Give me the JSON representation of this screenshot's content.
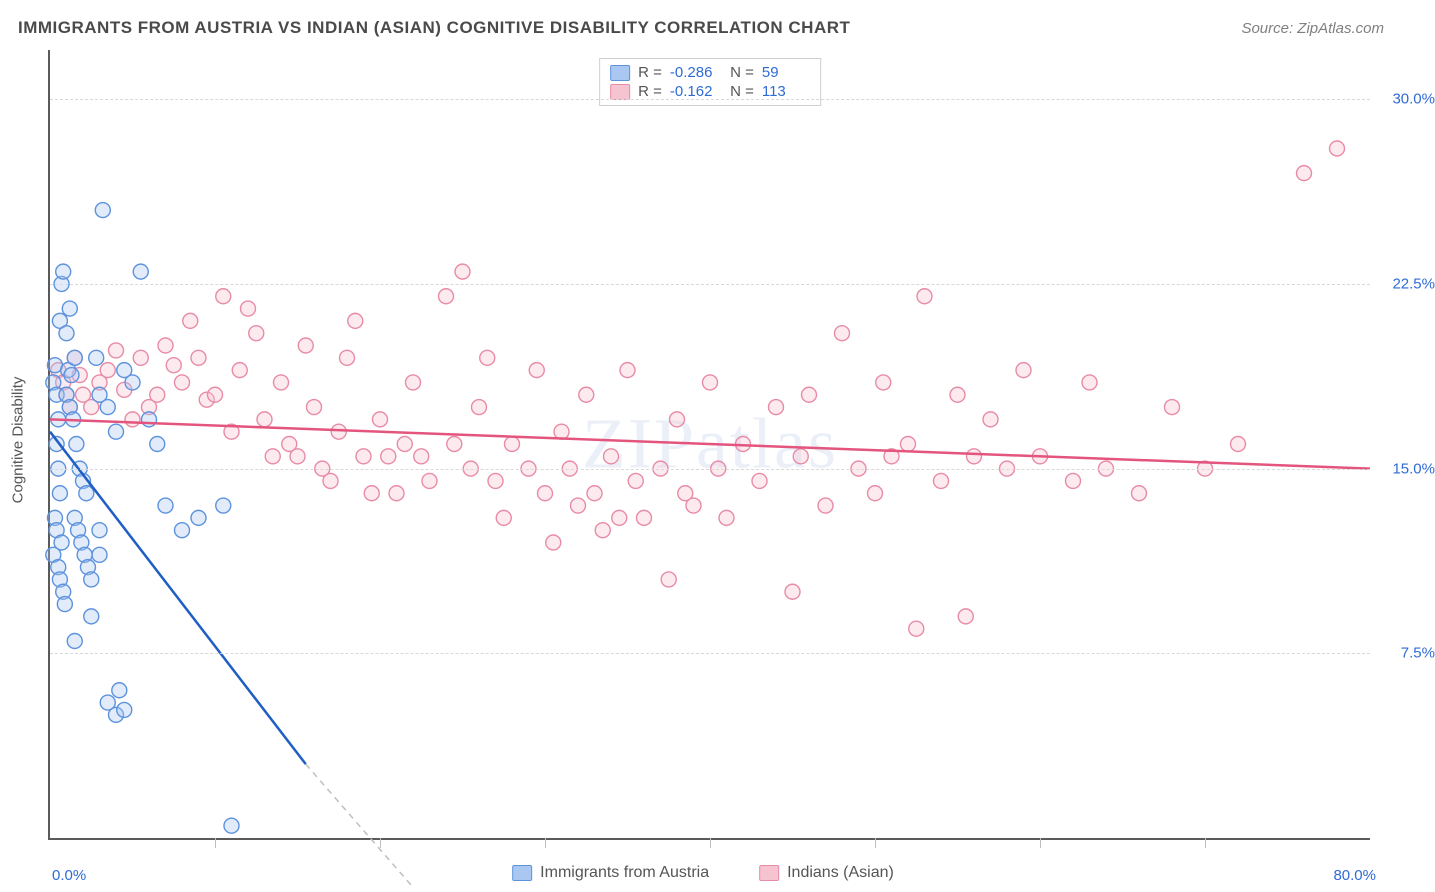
{
  "title": "IMMIGRANTS FROM AUSTRIA VS INDIAN (ASIAN) COGNITIVE DISABILITY CORRELATION CHART",
  "source": "Source: ZipAtlas.com",
  "watermark": "ZIPatlas",
  "ylabel": "Cognitive Disability",
  "chart": {
    "type": "scatter",
    "background_color": "#ffffff",
    "grid_color": "#d8d8d8",
    "axis_color": "#5a5a5a",
    "xlim": [
      0,
      80
    ],
    "ylim": [
      0,
      32
    ],
    "x_origin_label": "0.0%",
    "x_max_label": "80.0%",
    "yticks": [
      7.5,
      15.0,
      22.5,
      30.0
    ],
    "ytick_labels": [
      "7.5%",
      "15.0%",
      "22.5%",
      "30.0%"
    ],
    "xtick_positions": [
      10,
      20,
      30,
      40,
      50,
      60,
      70
    ],
    "marker_radius": 7.5,
    "marker_fill_opacity": 0.35,
    "marker_stroke_width": 1.4,
    "series": [
      {
        "name": "Immigrants from Austria",
        "color_fill": "#a9c7f0",
        "color_stroke": "#5d93dd",
        "trend_color": "#1f5fc4",
        "R": "-0.286",
        "N": "59",
        "trend": {
          "x1": 0,
          "y1": 16.5,
          "x2": 15.5,
          "y2": 3.0,
          "x2_ext": 22,
          "y2_ext": -2
        },
        "points": [
          [
            0.2,
            18.5
          ],
          [
            0.3,
            19.2
          ],
          [
            0.5,
            17.0
          ],
          [
            0.6,
            21.0
          ],
          [
            0.7,
            22.5
          ],
          [
            0.8,
            23.0
          ],
          [
            0.4,
            16.0
          ],
          [
            0.5,
            15.0
          ],
          [
            0.6,
            14.0
          ],
          [
            0.3,
            13.0
          ],
          [
            0.4,
            12.5
          ],
          [
            0.7,
            12.0
          ],
          [
            0.2,
            11.5
          ],
          [
            0.5,
            11.0
          ],
          [
            0.6,
            10.5
          ],
          [
            0.8,
            10.0
          ],
          [
            0.9,
            9.5
          ],
          [
            0.4,
            18.0
          ],
          [
            1.0,
            18.0
          ],
          [
            1.1,
            19.0
          ],
          [
            1.3,
            18.8
          ],
          [
            1.5,
            19.5
          ],
          [
            1.2,
            17.5
          ],
          [
            1.4,
            17.0
          ],
          [
            1.6,
            16.0
          ],
          [
            1.8,
            15.0
          ],
          [
            2.0,
            14.5
          ],
          [
            2.2,
            14.0
          ],
          [
            1.5,
            13.0
          ],
          [
            1.7,
            12.5
          ],
          [
            1.9,
            12.0
          ],
          [
            2.1,
            11.5
          ],
          [
            2.3,
            11.0
          ],
          [
            2.5,
            10.5
          ],
          [
            1.0,
            20.5
          ],
          [
            1.2,
            21.5
          ],
          [
            3.2,
            25.5
          ],
          [
            3.0,
            18.0
          ],
          [
            3.5,
            17.5
          ],
          [
            4.0,
            16.5
          ],
          [
            4.5,
            19.0
          ],
          [
            5.0,
            18.5
          ],
          [
            5.5,
            23.0
          ],
          [
            6.0,
            17.0
          ],
          [
            6.5,
            16.0
          ],
          [
            7.0,
            13.5
          ],
          [
            8.0,
            12.5
          ],
          [
            3.0,
            12.5
          ],
          [
            3.0,
            11.5
          ],
          [
            2.5,
            9.0
          ],
          [
            1.5,
            8.0
          ],
          [
            3.5,
            5.5
          ],
          [
            4.0,
            5.0
          ],
          [
            4.2,
            6.0
          ],
          [
            4.5,
            5.2
          ],
          [
            9.0,
            13.0
          ],
          [
            10.5,
            13.5
          ],
          [
            11.0,
            0.5
          ],
          [
            2.8,
            19.5
          ]
        ]
      },
      {
        "name": "Indians (Asian)",
        "color_fill": "#f6c3d1",
        "color_stroke": "#e88ba6",
        "trend_color": "#e4557e",
        "R": "-0.162",
        "N": "113",
        "trend": {
          "x1": 0,
          "y1": 17.0,
          "x2": 80,
          "y2": 15.0
        },
        "points": [
          [
            0.5,
            19.0
          ],
          [
            0.8,
            18.5
          ],
          [
            1.0,
            18.0
          ],
          [
            1.2,
            17.5
          ],
          [
            1.5,
            19.5
          ],
          [
            1.8,
            18.8
          ],
          [
            2.0,
            18.0
          ],
          [
            2.5,
            17.5
          ],
          [
            3.0,
            18.5
          ],
          [
            3.5,
            19.0
          ],
          [
            4.0,
            19.8
          ],
          [
            4.5,
            18.2
          ],
          [
            5.0,
            17.0
          ],
          [
            5.5,
            19.5
          ],
          [
            6.0,
            17.5
          ],
          [
            6.5,
            18.0
          ],
          [
            7.0,
            20.0
          ],
          [
            7.5,
            19.2
          ],
          [
            8.0,
            18.5
          ],
          [
            8.5,
            21.0
          ],
          [
            9.0,
            19.5
          ],
          [
            9.5,
            17.8
          ],
          [
            10.0,
            18.0
          ],
          [
            10.5,
            22.0
          ],
          [
            11.0,
            16.5
          ],
          [
            11.5,
            19.0
          ],
          [
            12.0,
            21.5
          ],
          [
            12.5,
            20.5
          ],
          [
            13.0,
            17.0
          ],
          [
            13.5,
            15.5
          ],
          [
            14.0,
            18.5
          ],
          [
            14.5,
            16.0
          ],
          [
            15.0,
            15.5
          ],
          [
            15.5,
            20.0
          ],
          [
            16.0,
            17.5
          ],
          [
            16.5,
            15.0
          ],
          [
            17.0,
            14.5
          ],
          [
            17.5,
            16.5
          ],
          [
            18.0,
            19.5
          ],
          [
            18.5,
            21.0
          ],
          [
            19.0,
            15.5
          ],
          [
            19.5,
            14.0
          ],
          [
            20.0,
            17.0
          ],
          [
            20.5,
            15.5
          ],
          [
            21.0,
            14.0
          ],
          [
            21.5,
            16.0
          ],
          [
            22.0,
            18.5
          ],
          [
            22.5,
            15.5
          ],
          [
            23.0,
            14.5
          ],
          [
            24.0,
            22.0
          ],
          [
            24.5,
            16.0
          ],
          [
            25.0,
            23.0
          ],
          [
            25.5,
            15.0
          ],
          [
            26.0,
            17.5
          ],
          [
            26.5,
            19.5
          ],
          [
            27.0,
            14.5
          ],
          [
            27.5,
            13.0
          ],
          [
            28.0,
            16.0
          ],
          [
            29.0,
            15.0
          ],
          [
            29.5,
            19.0
          ],
          [
            30.0,
            14.0
          ],
          [
            30.5,
            12.0
          ],
          [
            31.0,
            16.5
          ],
          [
            31.5,
            15.0
          ],
          [
            32.0,
            13.5
          ],
          [
            32.5,
            18.0
          ],
          [
            33.0,
            14.0
          ],
          [
            33.5,
            12.5
          ],
          [
            34.0,
            15.5
          ],
          [
            34.5,
            13.0
          ],
          [
            35.0,
            19.0
          ],
          [
            35.5,
            14.5
          ],
          [
            36.0,
            13.0
          ],
          [
            37.0,
            15.0
          ],
          [
            37.5,
            10.5
          ],
          [
            38.0,
            17.0
          ],
          [
            38.5,
            14.0
          ],
          [
            39.0,
            13.5
          ],
          [
            40.0,
            18.5
          ],
          [
            40.5,
            15.0
          ],
          [
            41.0,
            13.0
          ],
          [
            42.0,
            16.0
          ],
          [
            43.0,
            14.5
          ],
          [
            44.0,
            17.5
          ],
          [
            45.0,
            10.0
          ],
          [
            45.5,
            15.5
          ],
          [
            46.0,
            18.0
          ],
          [
            47.0,
            13.5
          ],
          [
            48.0,
            20.5
          ],
          [
            49.0,
            15.0
          ],
          [
            50.0,
            14.0
          ],
          [
            50.5,
            18.5
          ],
          [
            51.0,
            15.5
          ],
          [
            52.0,
            16.0
          ],
          [
            53.0,
            22.0
          ],
          [
            54.0,
            14.5
          ],
          [
            55.0,
            18.0
          ],
          [
            55.5,
            9.0
          ],
          [
            56.0,
            15.5
          ],
          [
            57.0,
            17.0
          ],
          [
            58.0,
            15.0
          ],
          [
            59.0,
            19.0
          ],
          [
            60.0,
            15.5
          ],
          [
            62.0,
            14.5
          ],
          [
            63.0,
            18.5
          ],
          [
            64.0,
            15.0
          ],
          [
            66.0,
            14.0
          ],
          [
            68.0,
            17.5
          ],
          [
            70.0,
            15.0
          ],
          [
            72.0,
            16.0
          ],
          [
            76.0,
            27.0
          ],
          [
            78.0,
            28.0
          ],
          [
            52.5,
            8.5
          ]
        ]
      }
    ]
  }
}
